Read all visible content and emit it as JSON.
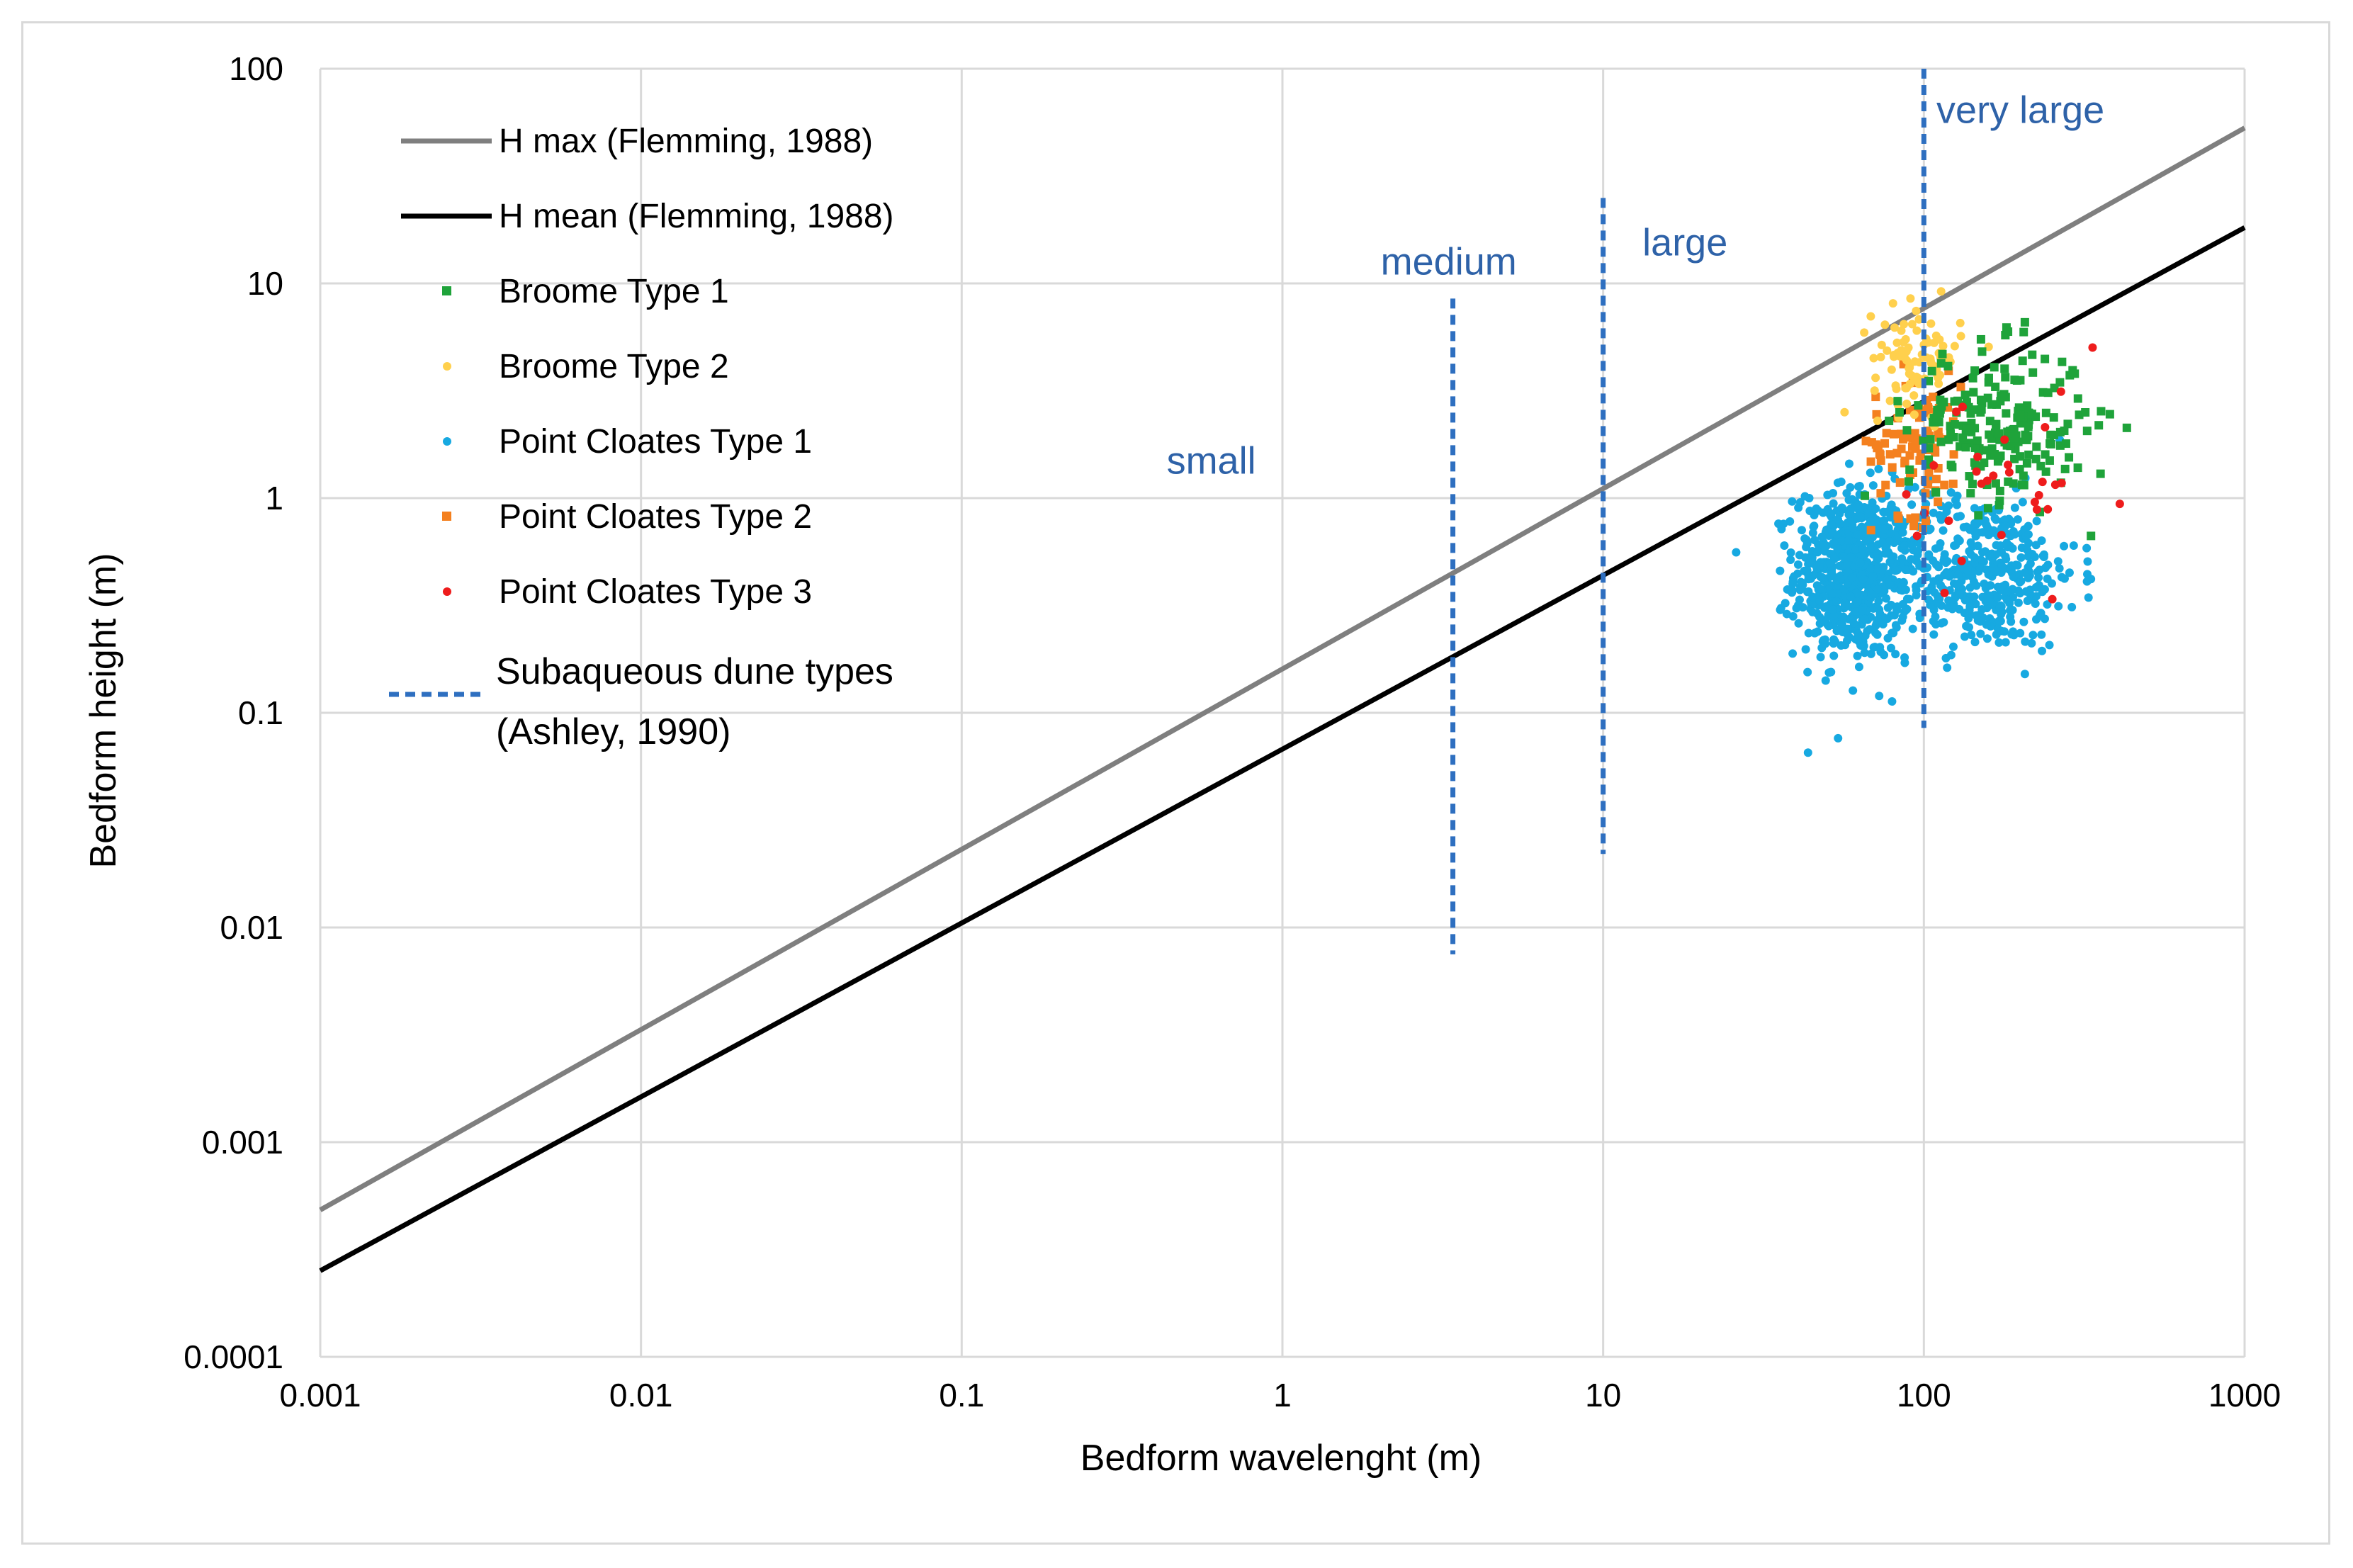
{
  "chart_data": {
    "type": "scatter",
    "x_scale": "log",
    "y_scale": "log",
    "xlim": [
      0.001,
      1000
    ],
    "ylim": [
      0.0001,
      100
    ],
    "xlabel": "Bedform wavelenght (m)",
    "ylabel": "Bedform height (m)",
    "x_ticks": [
      {
        "value": 0.001,
        "label": "0.001"
      },
      {
        "value": 0.01,
        "label": "0.01"
      },
      {
        "value": 0.1,
        "label": "0.1"
      },
      {
        "value": 1,
        "label": "1"
      },
      {
        "value": 10,
        "label": "10"
      },
      {
        "value": 100,
        "label": "100"
      },
      {
        "value": 1000,
        "label": "1000"
      }
    ],
    "y_ticks": [
      {
        "value": 0.0001,
        "label": "0.0001"
      },
      {
        "value": 0.001,
        "label": "0.001"
      },
      {
        "value": 0.01,
        "label": "0.01"
      },
      {
        "value": 0.1,
        "label": "0.1"
      },
      {
        "value": 1,
        "label": "1"
      },
      {
        "value": 10,
        "label": "10"
      },
      {
        "value": 100,
        "label": "100"
      }
    ],
    "lines": [
      {
        "name": "H max (Flemming, 1988)",
        "color": "#7f7f7f",
        "coef": 0.16,
        "exp": 0.84
      },
      {
        "name": "H mean (Flemming, 1988)",
        "color": "#000000",
        "coef": 0.0677,
        "exp": 0.8098
      }
    ],
    "series": [
      {
        "name": "Broome Type 1",
        "color": "#1fa33a",
        "marker": "square",
        "clusters": [
          {
            "cx": 170,
            "cy": 2.2,
            "sx": 0.14,
            "sy": 0.18,
            "n": 220
          }
        ]
      },
      {
        "name": "Broome Type 2",
        "color": "#ffd04d",
        "marker": "circle",
        "clusters": [
          {
            "cx": 95,
            "cy": 4.5,
            "sx": 0.07,
            "sy": 0.12,
            "n": 90
          }
        ]
      },
      {
        "name": "Point Cloates Type 1",
        "color": "#17a9e1",
        "marker": "circle",
        "clusters": [
          {
            "cx": 60,
            "cy": 0.45,
            "sx": 0.09,
            "sy": 0.2,
            "n": 700
          },
          {
            "cx": 150,
            "cy": 0.45,
            "sx": 0.15,
            "sy": 0.18,
            "n": 450
          }
        ]
      },
      {
        "name": "Point Cloates Type 2",
        "color": "#f4801f",
        "marker": "square",
        "clusters": [
          {
            "cx": 95,
            "cy": 1.8,
            "sx": 0.07,
            "sy": 0.17,
            "n": 90
          }
        ]
      },
      {
        "name": "Point Cloates Type 3",
        "color": "#ee1c1c",
        "marker": "circle",
        "clusters": [
          {
            "cx": 180,
            "cy": 0.9,
            "sx": 0.18,
            "sy": 0.3,
            "n": 30
          }
        ]
      }
    ],
    "dune_dividers": {
      "name": "Subaqueous dune types (Ashley, 1990)",
      "color": "#2e6fc0",
      "lines": [
        {
          "x": 3.4,
          "y_min": 0.0075,
          "y_max": 8.5
        },
        {
          "x": 10,
          "y_min": 0.022,
          "y_max": 25
        },
        {
          "x": 100,
          "y_min": 0.085,
          "y_max": 100
        }
      ]
    },
    "zone_labels": [
      {
        "text": "small",
        "x": 0.6,
        "y": 1.3
      },
      {
        "text": "medium",
        "x": 3.3,
        "y": 11
      },
      {
        "text": "large",
        "x": 18,
        "y": 13.5
      },
      {
        "text": "very large",
        "x": 200,
        "y": 56
      }
    ],
    "legend": {
      "position": "top-left",
      "entries": [
        {
          "label": "H max (Flemming, 1988)",
          "kind": "line",
          "color": "#7f7f7f"
        },
        {
          "label": "H mean (Flemming, 1988)",
          "kind": "line",
          "color": "#000000"
        },
        {
          "label": "Broome Type 1",
          "kind": "square",
          "color": "#1fa33a"
        },
        {
          "label": "Broome Type 2",
          "kind": "circle",
          "color": "#ffd04d"
        },
        {
          "label": "Point Cloates Type 1",
          "kind": "circle",
          "color": "#17a9e1"
        },
        {
          "label": "Point Cloates Type 2",
          "kind": "square",
          "color": "#f4801f"
        },
        {
          "label": "Point Cloates Type 3",
          "kind": "circle",
          "color": "#ee1c1c"
        },
        {
          "label": "Subaqueous dune types",
          "label2": "(Ashley, 1990)",
          "kind": "dashed",
          "color": "#2e6fc0"
        }
      ]
    }
  }
}
